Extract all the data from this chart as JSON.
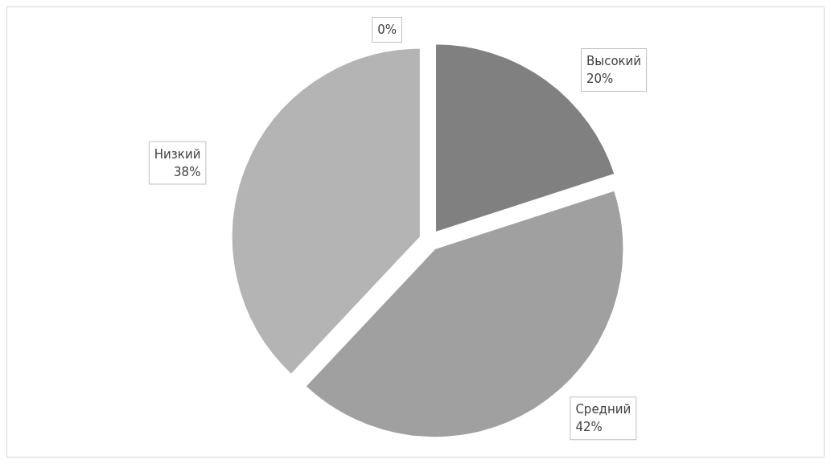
{
  "chart_data": {
    "type": "pie",
    "categories": [
      null,
      "Высокий",
      "Средний",
      "Низкий"
    ],
    "values": [
      0,
      20,
      42,
      38
    ],
    "colors": [
      "#595959",
      "#808080",
      "#a0a0a0",
      "#b4b4b4"
    ],
    "value_labels": [
      "0%",
      "20%",
      "42%",
      "38%"
    ],
    "legend": false
  }
}
